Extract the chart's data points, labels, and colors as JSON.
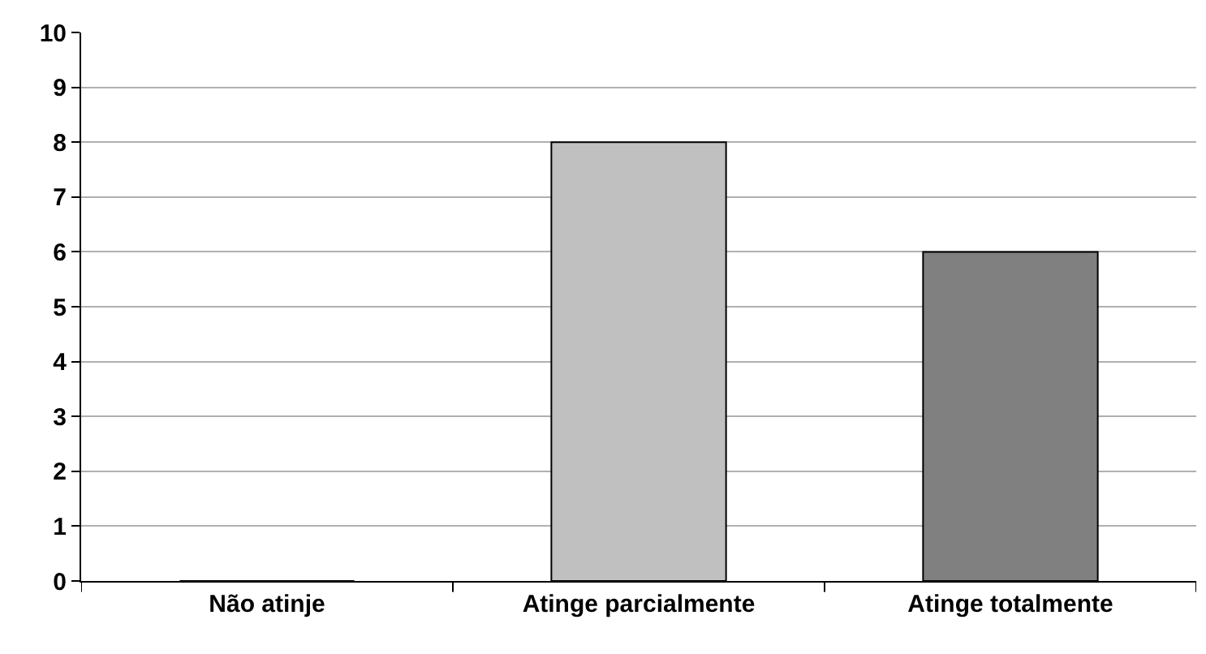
{
  "chart_data": {
    "type": "bar",
    "categories": [
      "Não atinje",
      "Atinge parcialmente",
      "Atinge totalmente"
    ],
    "values": [
      0,
      8,
      6
    ],
    "colors": [
      "#a0a0a0",
      "#c0c0c0",
      "#808080"
    ],
    "ylim": [
      0,
      10
    ],
    "yticks": [
      0,
      1,
      2,
      3,
      4,
      5,
      6,
      7,
      8,
      9,
      10
    ],
    "grid": "y"
  }
}
